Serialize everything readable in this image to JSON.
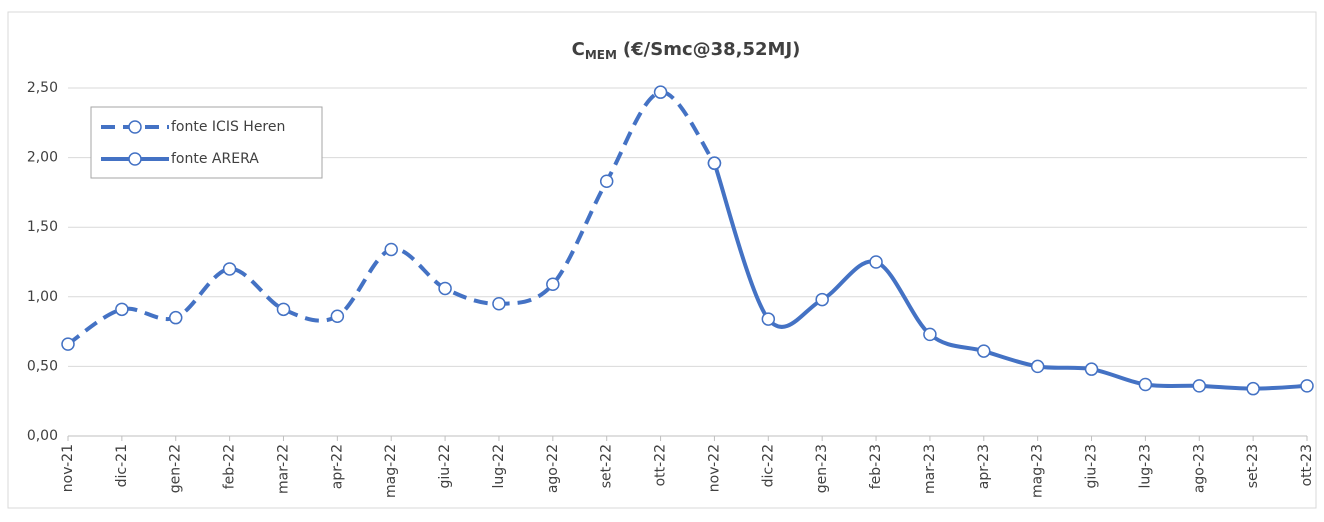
{
  "chart_data": {
    "type": "line",
    "title": {
      "base": "C",
      "subscript": "MEM",
      "text": "(€/Smc@38,52MJ)"
    },
    "categories": [
      "nov-21",
      "dic-21",
      "gen-22",
      "feb-22",
      "mar-22",
      "apr-22",
      "mag-22",
      "giu-22",
      "lug-22",
      "ago-22",
      "set-22",
      "ott-22",
      "nov-22",
      "dic-22",
      "gen-23",
      "feb-23",
      "mar-23",
      "apr-23",
      "mag-23",
      "giu-23",
      "lug-23",
      "ago-23",
      "set-23",
      "ott-23"
    ],
    "series": [
      {
        "name": "fonte ICIS Heren",
        "color": "#4472c4",
        "dashed": true,
        "values": [
          0.66,
          0.91,
          0.85,
          1.2,
          0.91,
          0.86,
          1.34,
          1.06,
          0.95,
          1.09,
          1.83,
          2.47,
          1.96,
          null,
          null,
          null,
          null,
          null,
          null,
          null,
          null,
          null,
          null,
          null
        ]
      },
      {
        "name": "fonte ARERA",
        "color": "#4472c4",
        "dashed": false,
        "values": [
          null,
          null,
          null,
          null,
          null,
          null,
          null,
          null,
          null,
          null,
          null,
          null,
          1.96,
          0.84,
          0.98,
          1.25,
          0.73,
          0.61,
          0.5,
          0.48,
          0.37,
          0.36,
          0.34,
          0.36
        ]
      }
    ],
    "ylim": [
      0,
      2.5
    ],
    "yticks": [
      {
        "value": 0,
        "label": "0,00"
      },
      {
        "value": 0.5,
        "label": "0,50"
      },
      {
        "value": 1,
        "label": "1,00"
      },
      {
        "value": 1.5,
        "label": "1,50"
      },
      {
        "value": 2,
        "label": "2,00"
      },
      {
        "value": 2.5,
        "label": "2,50"
      }
    ],
    "grid": true,
    "legend": "upper-left"
  }
}
